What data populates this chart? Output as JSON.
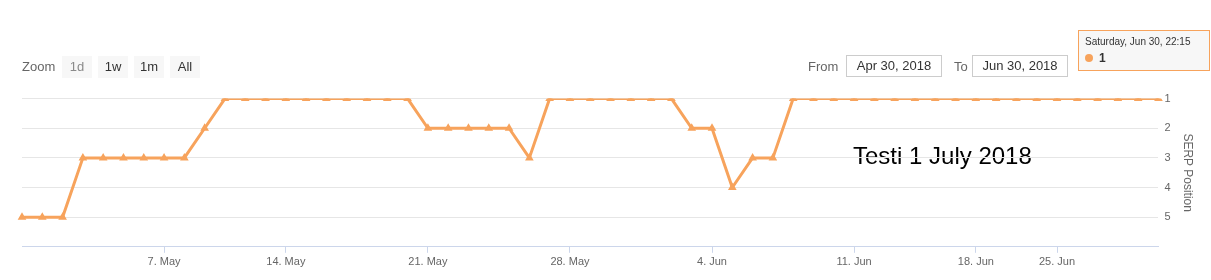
{
  "chart_data": {
    "type": "line",
    "ylabel": "SERP Position",
    "categories": [
      null,
      null,
      null,
      null,
      null,
      null,
      null,
      "7. May",
      null,
      null,
      null,
      null,
      null,
      "14. May",
      null,
      null,
      null,
      null,
      null,
      null,
      "21. May",
      null,
      null,
      null,
      null,
      null,
      null,
      "28. May",
      null,
      null,
      null,
      null,
      null,
      null,
      "4. Jun",
      null,
      null,
      null,
      null,
      null,
      null,
      "11. Jun",
      null,
      null,
      null,
      null,
      null,
      "18. Jun",
      null,
      null,
      null,
      "25. Jun",
      null,
      null,
      null,
      null,
      null
    ],
    "series": [
      {
        "color": "#f7a35c",
        "values": [
          5,
          5,
          5,
          3,
          3,
          3,
          3,
          3,
          3,
          2,
          1,
          1,
          1,
          1,
          1,
          1,
          1,
          1,
          1,
          1,
          2,
          2,
          2,
          2,
          2,
          3,
          1,
          1,
          1,
          1,
          1,
          1,
          1,
          2,
          2,
          4,
          3,
          3,
          1,
          1,
          1,
          1,
          1,
          1,
          1,
          1,
          1,
          1,
          1,
          1,
          1,
          1,
          1,
          1,
          1,
          1,
          1
        ]
      }
    ],
    "ylim": [
      6,
      1
    ],
    "yticks": [
      1,
      2,
      3,
      4,
      5
    ],
    "grid": "y",
    "legend": false,
    "marker": "triangle",
    "line_style": "solid",
    "annotations": [
      "Zoom",
      "1d",
      "1w",
      "1m",
      "All",
      "From",
      "Apr 30, 2018",
      "To",
      "Jun 30, 2018",
      "Saturday, Jun 30, 22:15",
      "1",
      "Testi 1 July 2018"
    ]
  }
}
